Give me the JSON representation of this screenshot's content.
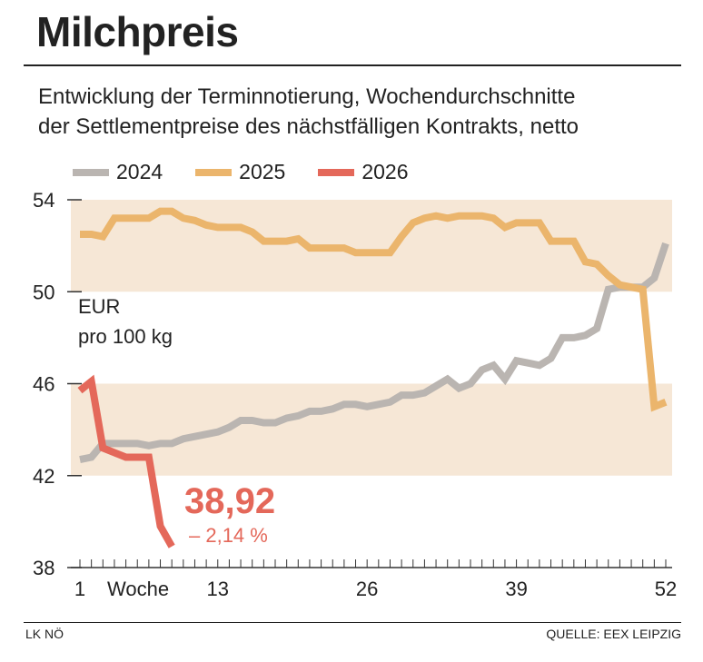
{
  "title": "Milchpreis",
  "subtitle": [
    "Entwicklung der Terminnotierung, Wochendurchschnitte",
    "der Settlementpreise des nächstfälligen Kontrakts, netto"
  ],
  "footer": {
    "left": "LK NÖ",
    "right": "QUELLE: EEX LEIPZIG"
  },
  "chart_data": {
    "type": "line",
    "ylabel": [
      "EUR",
      "pro 100 kg"
    ],
    "xlabel": "Woche",
    "ylim": [
      38,
      54
    ],
    "yticks": [
      38,
      42,
      46,
      50,
      54
    ],
    "xlim": [
      1,
      52
    ],
    "xticks": [
      1,
      13,
      26,
      39,
      52
    ],
    "bands": [
      [
        50,
        54
      ],
      [
        42,
        46
      ]
    ],
    "band_color": "#f6e7d6",
    "series": [
      {
        "name": "2024",
        "color": "#bab5b1",
        "values": [
          42.7,
          42.8,
          43.4,
          43.4,
          43.4,
          43.4,
          43.3,
          43.4,
          43.4,
          43.6,
          43.7,
          43.8,
          43.9,
          44.1,
          44.4,
          44.4,
          44.3,
          44.3,
          44.5,
          44.6,
          44.8,
          44.8,
          44.9,
          45.1,
          45.1,
          45.0,
          45.1,
          45.2,
          45.5,
          45.5,
          45.6,
          45.9,
          46.2,
          45.8,
          46.0,
          46.6,
          46.8,
          46.2,
          47.0,
          46.9,
          46.8,
          47.1,
          48.0,
          48.0,
          48.1,
          48.4,
          50.1,
          50.2,
          50.2,
          50.2,
          50.6,
          52.1
        ]
      },
      {
        "name": "2025",
        "color": "#ebb56c",
        "values": [
          52.5,
          52.5,
          52.4,
          53.2,
          53.2,
          53.2,
          53.2,
          53.5,
          53.5,
          53.2,
          53.1,
          52.9,
          52.8,
          52.8,
          52.8,
          52.6,
          52.2,
          52.2,
          52.2,
          52.3,
          51.9,
          51.9,
          51.9,
          51.9,
          51.7,
          51.7,
          51.7,
          51.7,
          52.4,
          53.0,
          53.2,
          53.3,
          53.2,
          53.3,
          53.3,
          53.3,
          53.2,
          52.8,
          53.0,
          53.0,
          53.0,
          52.2,
          52.2,
          52.2,
          51.3,
          51.2,
          50.7,
          50.3,
          50.2,
          50.1,
          45.0,
          45.2
        ]
      },
      {
        "name": "2026",
        "color": "#e4685a",
        "values": [
          45.7,
          46.1,
          43.2,
          43.0,
          42.8,
          42.8,
          42.8,
          39.8,
          38.92
        ]
      }
    ],
    "annotation": {
      "value": "38,92",
      "change": "– 2,14 %"
    }
  }
}
